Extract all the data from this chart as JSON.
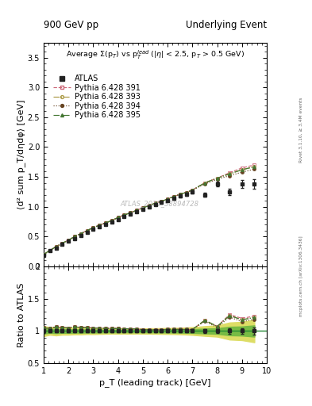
{
  "title_left": "900 GeV pp",
  "title_right": "Underlying Event",
  "plot_title": "Average Σ(p_T) vs p_T^{lead} (|η| < 2.5, p_T > 0.5 GeV)",
  "xlabel": "p_T (leading track) [GeV]",
  "ylabel": "⟨d² sum p_T/dηdφ⟩ [GeV]",
  "ylabel_ratio": "Ratio to ATLAS",
  "watermark": "ATLAS_2010_S8894728",
  "right_label": "mcplots.cern.ch [arXiv:1306.3436]",
  "right_label2": "Rivet 3.1.10, ≥ 3.4M events",
  "xlim": [
    1,
    10
  ],
  "ylim_main": [
    0.0,
    3.75
  ],
  "ylim_ratio": [
    0.5,
    2.0
  ],
  "yticks_main": [
    0.0,
    0.5,
    1.0,
    1.5,
    2.0,
    2.5,
    3.0,
    3.5
  ],
  "yticks_ratio": [
    0.5,
    1.0,
    1.5,
    2.0
  ],
  "atlas_x": [
    1.0,
    1.25,
    1.5,
    1.75,
    2.0,
    2.25,
    2.5,
    2.75,
    3.0,
    3.25,
    3.5,
    3.75,
    4.0,
    4.25,
    4.5,
    4.75,
    5.0,
    5.25,
    5.5,
    5.75,
    6.0,
    6.25,
    6.5,
    6.75,
    7.0,
    7.5,
    8.0,
    8.5,
    9.0,
    9.5
  ],
  "atlas_y": [
    0.19,
    0.26,
    0.31,
    0.37,
    0.42,
    0.47,
    0.52,
    0.57,
    0.62,
    0.66,
    0.7,
    0.74,
    0.79,
    0.83,
    0.87,
    0.91,
    0.96,
    1.0,
    1.04,
    1.07,
    1.1,
    1.14,
    1.18,
    1.21,
    1.25,
    1.2,
    1.38,
    1.25,
    1.38,
    1.38
  ],
  "atlas_yerr": [
    0.005,
    0.005,
    0.007,
    0.007,
    0.008,
    0.008,
    0.009,
    0.009,
    0.01,
    0.01,
    0.01,
    0.01,
    0.011,
    0.011,
    0.012,
    0.012,
    0.013,
    0.014,
    0.015,
    0.016,
    0.017,
    0.018,
    0.02,
    0.022,
    0.025,
    0.03,
    0.04,
    0.055,
    0.065,
    0.08
  ],
  "py391_x": [
    1.0,
    1.25,
    1.5,
    1.75,
    2.0,
    2.25,
    2.5,
    2.75,
    3.0,
    3.25,
    3.5,
    3.75,
    4.0,
    4.25,
    4.5,
    4.75,
    5.0,
    5.25,
    5.5,
    5.75,
    6.0,
    6.25,
    6.5,
    6.75,
    7.0,
    7.5,
    8.0,
    8.5,
    9.0,
    9.5
  ],
  "py391_y": [
    0.2,
    0.27,
    0.33,
    0.39,
    0.44,
    0.5,
    0.55,
    0.6,
    0.65,
    0.69,
    0.73,
    0.77,
    0.82,
    0.86,
    0.9,
    0.94,
    0.98,
    1.02,
    1.06,
    1.09,
    1.13,
    1.17,
    1.21,
    1.24,
    1.28,
    1.4,
    1.48,
    1.57,
    1.65,
    1.7
  ],
  "py393_x": [
    1.0,
    1.25,
    1.5,
    1.75,
    2.0,
    2.25,
    2.5,
    2.75,
    3.0,
    3.25,
    3.5,
    3.75,
    4.0,
    4.25,
    4.5,
    4.75,
    5.0,
    5.25,
    5.5,
    5.75,
    6.0,
    6.25,
    6.5,
    6.75,
    7.0,
    7.5,
    8.0,
    8.5,
    9.0,
    9.5
  ],
  "py393_y": [
    0.2,
    0.27,
    0.33,
    0.39,
    0.44,
    0.5,
    0.55,
    0.6,
    0.65,
    0.69,
    0.73,
    0.77,
    0.82,
    0.86,
    0.9,
    0.94,
    0.98,
    1.02,
    1.06,
    1.09,
    1.13,
    1.17,
    1.21,
    1.24,
    1.28,
    1.4,
    1.48,
    1.55,
    1.62,
    1.67
  ],
  "py394_x": [
    1.0,
    1.25,
    1.5,
    1.75,
    2.0,
    2.25,
    2.5,
    2.75,
    3.0,
    3.25,
    3.5,
    3.75,
    4.0,
    4.25,
    4.5,
    4.75,
    5.0,
    5.25,
    5.5,
    5.75,
    6.0,
    6.25,
    6.5,
    6.75,
    7.0,
    7.5,
    8.0,
    8.5,
    9.0,
    9.5
  ],
  "py394_y": [
    0.2,
    0.27,
    0.33,
    0.39,
    0.44,
    0.5,
    0.55,
    0.6,
    0.65,
    0.69,
    0.73,
    0.77,
    0.82,
    0.86,
    0.9,
    0.94,
    0.98,
    1.02,
    1.06,
    1.09,
    1.13,
    1.17,
    1.21,
    1.24,
    1.28,
    1.38,
    1.46,
    1.52,
    1.58,
    1.63
  ],
  "py395_x": [
    1.0,
    1.25,
    1.5,
    1.75,
    2.0,
    2.25,
    2.5,
    2.75,
    3.0,
    3.25,
    3.5,
    3.75,
    4.0,
    4.25,
    4.5,
    4.75,
    5.0,
    5.25,
    5.5,
    5.75,
    6.0,
    6.25,
    6.5,
    6.75,
    7.0,
    7.5,
    8.0,
    8.5,
    9.0,
    9.5
  ],
  "py395_y": [
    0.2,
    0.27,
    0.33,
    0.39,
    0.44,
    0.5,
    0.55,
    0.6,
    0.65,
    0.69,
    0.73,
    0.77,
    0.82,
    0.86,
    0.9,
    0.94,
    0.98,
    1.02,
    1.06,
    1.09,
    1.13,
    1.17,
    1.21,
    1.24,
    1.28,
    1.4,
    1.48,
    1.55,
    1.62,
    1.67
  ],
  "color_391": "#cc6677",
  "color_393": "#aa9944",
  "color_394": "#664422",
  "color_395": "#447733",
  "band_inner_color": "#77bb44",
  "band_outer_color": "#dddd66",
  "atlas_color": "#222222",
  "bg_color": "#ffffff",
  "legend_fontsize": 7.0,
  "axis_fontsize": 8.0
}
